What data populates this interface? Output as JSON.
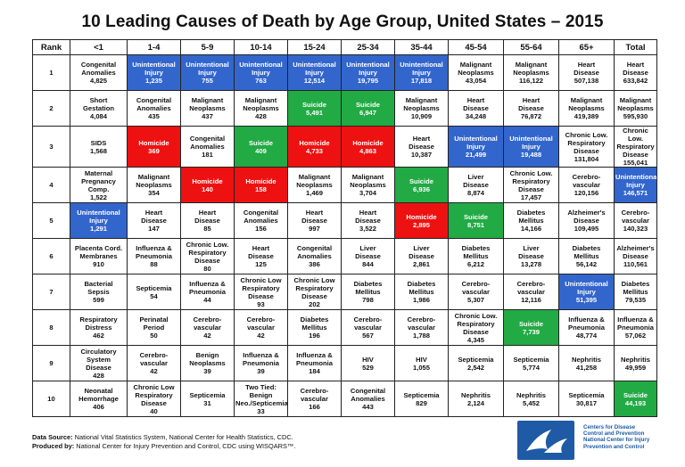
{
  "chart_data": {
    "type": "table",
    "title": "10 Leading Causes of Death by Age Group, United States – 2015",
    "columns": [
      "Rank",
      "<1",
      "1-4",
      "5-9",
      "10-14",
      "15-24",
      "25-34",
      "35-44",
      "45-54",
      "55-64",
      "65+",
      "Total"
    ],
    "rows": [
      {
        "rank": "1",
        "cells": [
          {
            "cause": "Congenital\nAnomalies",
            "count": "4,825",
            "color": ""
          },
          {
            "cause": "Unintentional\nInjury",
            "count": "1,235",
            "color": "#3366cc"
          },
          {
            "cause": "Unintentional\nInjury",
            "count": "755",
            "color": "#3366cc"
          },
          {
            "cause": "Unintentional\nInjury",
            "count": "763",
            "color": "#3366cc"
          },
          {
            "cause": "Unintentional\nInjury",
            "count": "12,514",
            "color": "#3366cc"
          },
          {
            "cause": "Unintentional\nInjury",
            "count": "19,795",
            "color": "#3366cc"
          },
          {
            "cause": "Unintentional\nInjury",
            "count": "17,818",
            "color": "#3366cc"
          },
          {
            "cause": "Malignant\nNeoplasms",
            "count": "43,054",
            "color": ""
          },
          {
            "cause": "Malignant\nNeoplasms",
            "count": "116,122",
            "color": ""
          },
          {
            "cause": "Heart\nDisease",
            "count": "507,138",
            "color": ""
          },
          {
            "cause": "Heart\nDisease",
            "count": "633,842",
            "color": ""
          }
        ]
      },
      {
        "rank": "2",
        "cells": [
          {
            "cause": "Short\nGestation",
            "count": "4,084",
            "color": ""
          },
          {
            "cause": "Congenital\nAnomalies",
            "count": "435",
            "color": ""
          },
          {
            "cause": "Malignant\nNeoplasms",
            "count": "437",
            "color": ""
          },
          {
            "cause": "Malignant\nNeoplasms",
            "count": "428",
            "color": ""
          },
          {
            "cause": "Suicide",
            "count": "5,491",
            "color": "#22aa44"
          },
          {
            "cause": "Suicide",
            "count": "6,947",
            "color": "#22aa44"
          },
          {
            "cause": "Malignant\nNeoplasms",
            "count": "10,909",
            "color": ""
          },
          {
            "cause": "Heart\nDisease",
            "count": "34,248",
            "color": ""
          },
          {
            "cause": "Heart\nDisease",
            "count": "76,872",
            "color": ""
          },
          {
            "cause": "Malignant\nNeoplasms",
            "count": "419,389",
            "color": ""
          },
          {
            "cause": "Malignant\nNeoplasms",
            "count": "595,930",
            "color": ""
          }
        ]
      },
      {
        "rank": "3",
        "cells": [
          {
            "cause": "SIDS",
            "count": "1,568",
            "color": ""
          },
          {
            "cause": "Homicide",
            "count": "369",
            "color": "#ee1111"
          },
          {
            "cause": "Congenital\nAnomalies",
            "count": "181",
            "color": ""
          },
          {
            "cause": "Suicide",
            "count": "409",
            "color": "#22aa44"
          },
          {
            "cause": "Homicide",
            "count": "4,733",
            "color": "#ee1111"
          },
          {
            "cause": "Homicide",
            "count": "4,863",
            "color": "#ee1111"
          },
          {
            "cause": "Heart\nDisease",
            "count": "10,387",
            "color": ""
          },
          {
            "cause": "Unintentional\nInjury",
            "count": "21,499",
            "color": "#3366cc"
          },
          {
            "cause": "Unintentional\nInjury",
            "count": "19,488",
            "color": "#3366cc"
          },
          {
            "cause": "Chronic Low.\nRespiratory\nDisease",
            "count": "131,804",
            "color": ""
          },
          {
            "cause": "Chronic Low.\nRespiratory\nDisease",
            "count": "155,041",
            "color": ""
          }
        ]
      },
      {
        "rank": "4",
        "cells": [
          {
            "cause": "Maternal\nPregnancy\nComp.",
            "count": "1,522",
            "color": ""
          },
          {
            "cause": "Malignant\nNeoplasms",
            "count": "354",
            "color": ""
          },
          {
            "cause": "Homicide",
            "count": "140",
            "color": "#ee1111"
          },
          {
            "cause": "Homicide",
            "count": "158",
            "color": "#ee1111"
          },
          {
            "cause": "Malignant\nNeoplasms",
            "count": "1,469",
            "color": ""
          },
          {
            "cause": "Malignant\nNeoplasms",
            "count": "3,704",
            "color": ""
          },
          {
            "cause": "Suicide",
            "count": "6,936",
            "color": "#22aa44"
          },
          {
            "cause": "Liver\nDisease",
            "count": "8,874",
            "color": ""
          },
          {
            "cause": "Chronic Low.\nRespiratory\nDisease",
            "count": "17,457",
            "color": ""
          },
          {
            "cause": "Cerebro-\nvascular",
            "count": "120,156",
            "color": ""
          },
          {
            "cause": "Unintentional\nInjury",
            "count": "146,571",
            "color": "#3366cc"
          }
        ]
      },
      {
        "rank": "5",
        "cells": [
          {
            "cause": "Unintentional\nInjury",
            "count": "1,291",
            "color": "#3366cc"
          },
          {
            "cause": "Heart\nDisease",
            "count": "147",
            "color": ""
          },
          {
            "cause": "Heart\nDisease",
            "count": "85",
            "color": ""
          },
          {
            "cause": "Congenital\nAnomalies",
            "count": "156",
            "color": ""
          },
          {
            "cause": "Heart\nDisease",
            "count": "997",
            "color": ""
          },
          {
            "cause": "Heart\nDisease",
            "count": "3,522",
            "color": ""
          },
          {
            "cause": "Homicide",
            "count": "2,895",
            "color": "#ee1111"
          },
          {
            "cause": "Suicide",
            "count": "8,751",
            "color": "#22aa44"
          },
          {
            "cause": "Diabetes\nMellitus",
            "count": "14,166",
            "color": ""
          },
          {
            "cause": "Alzheimer's\nDisease",
            "count": "109,495",
            "color": ""
          },
          {
            "cause": "Cerebro-\nvascular",
            "count": "140,323",
            "color": ""
          }
        ]
      },
      {
        "rank": "6",
        "cells": [
          {
            "cause": "Placenta Cord.\nMembranes",
            "count": "910",
            "color": ""
          },
          {
            "cause": "Influenza &\nPneumonia",
            "count": "88",
            "color": ""
          },
          {
            "cause": "Chronic Low.\nRespiratory\nDisease",
            "count": "80",
            "color": ""
          },
          {
            "cause": "Heart\nDisease",
            "count": "125",
            "color": ""
          },
          {
            "cause": "Congenital\nAnomalies",
            "count": "386",
            "color": ""
          },
          {
            "cause": "Liver\nDisease",
            "count": "844",
            "color": ""
          },
          {
            "cause": "Liver\nDisease",
            "count": "2,861",
            "color": ""
          },
          {
            "cause": "Diabetes\nMellitus",
            "count": "6,212",
            "color": ""
          },
          {
            "cause": "Liver\nDisease",
            "count": "13,278",
            "color": ""
          },
          {
            "cause": "Diabetes\nMellitus",
            "count": "56,142",
            "color": ""
          },
          {
            "cause": "Alzheimer's\nDisease",
            "count": "110,561",
            "color": ""
          }
        ]
      },
      {
        "rank": "7",
        "cells": [
          {
            "cause": "Bacterial\nSepsis",
            "count": "599",
            "color": ""
          },
          {
            "cause": "Septicemia",
            "count": "54",
            "color": ""
          },
          {
            "cause": "Influenza &\nPneumonia",
            "count": "44",
            "color": ""
          },
          {
            "cause": "Chronic Low\nRespiratory\nDisease",
            "count": "93",
            "color": ""
          },
          {
            "cause": "Chronic Low\nRespiratory\nDisease",
            "count": "202",
            "color": ""
          },
          {
            "cause": "Diabetes\nMellitus",
            "count": "798",
            "color": ""
          },
          {
            "cause": "Diabetes\nMellitus",
            "count": "1,986",
            "color": ""
          },
          {
            "cause": "Cerebro-\nvascular",
            "count": "5,307",
            "color": ""
          },
          {
            "cause": "Cerebro-\nvascular",
            "count": "12,116",
            "color": ""
          },
          {
            "cause": "Unintentional\nInjury",
            "count": "51,395",
            "color": "#3366cc"
          },
          {
            "cause": "Diabetes\nMellitus",
            "count": "79,535",
            "color": ""
          }
        ]
      },
      {
        "rank": "8",
        "cells": [
          {
            "cause": "Respiratory\nDistress",
            "count": "462",
            "color": ""
          },
          {
            "cause": "Perinatal\nPeriod",
            "count": "50",
            "color": ""
          },
          {
            "cause": "Cerebro-\nvascular",
            "count": "42",
            "color": ""
          },
          {
            "cause": "Cerebro-\nvascular",
            "count": "42",
            "color": ""
          },
          {
            "cause": "Diabetes\nMellitus",
            "count": "196",
            "color": ""
          },
          {
            "cause": "Cerebro-\nvascular",
            "count": "567",
            "color": ""
          },
          {
            "cause": "Cerebro-\nvascular",
            "count": "1,788",
            "color": ""
          },
          {
            "cause": "Chronic Low.\nRespiratory\nDisease",
            "count": "4,345",
            "color": ""
          },
          {
            "cause": "Suicide",
            "count": "7,739",
            "color": "#22aa44"
          },
          {
            "cause": "Influenza &\nPneumonia",
            "count": "48,774",
            "color": ""
          },
          {
            "cause": "Influenza &\nPneumonia",
            "count": "57,062",
            "color": ""
          }
        ]
      },
      {
        "rank": "9",
        "cells": [
          {
            "cause": "Circulatory\nSystem\nDisease",
            "count": "428",
            "color": ""
          },
          {
            "cause": "Cerebro-\nvascular",
            "count": "42",
            "color": ""
          },
          {
            "cause": "Benign\nNeoplasms",
            "count": "39",
            "color": ""
          },
          {
            "cause": "Influenza &\nPneumonia",
            "count": "39",
            "color": ""
          },
          {
            "cause": "Influenza &\nPneumonia",
            "count": "184",
            "color": ""
          },
          {
            "cause": "HIV",
            "count": "529",
            "color": ""
          },
          {
            "cause": "HIV",
            "count": "1,055",
            "color": ""
          },
          {
            "cause": "Septicemia",
            "count": "2,542",
            "color": ""
          },
          {
            "cause": "Septicemia",
            "count": "5,774",
            "color": ""
          },
          {
            "cause": "Nephritis",
            "count": "41,258",
            "color": ""
          },
          {
            "cause": "Nephritis",
            "count": "49,959",
            "color": ""
          }
        ]
      },
      {
        "rank": "10",
        "cells": [
          {
            "cause": "Neonatal\nHemorrhage",
            "count": "406",
            "color": ""
          },
          {
            "cause": "Chronic Low\nRespiratory\nDisease",
            "count": "40",
            "color": ""
          },
          {
            "cause": "Septicemia",
            "count": "31",
            "color": ""
          },
          {
            "cause": "Two Tied: Benign\nNeo./Septicemia",
            "count": "33",
            "color": ""
          },
          {
            "cause": "Cerebro-\nvascular",
            "count": "166",
            "color": ""
          },
          {
            "cause": "Congenital\nAnomalies",
            "count": "443",
            "color": ""
          },
          {
            "cause": "Septicemia",
            "count": "829",
            "color": ""
          },
          {
            "cause": "Nephritis",
            "count": "2,124",
            "color": ""
          },
          {
            "cause": "Nephritis",
            "count": "5,452",
            "color": ""
          },
          {
            "cause": "Septicemia",
            "count": "30,817",
            "color": ""
          },
          {
            "cause": "Suicide",
            "count": "44,193",
            "color": "#22aa44"
          }
        ]
      }
    ]
  },
  "footer": {
    "source_label": "Data Source:",
    "source_text": " National Vital Statistics System, National Center for Health Statistics, CDC.",
    "produced_label": "Produced by:",
    "produced_text": " National Center for Injury Prevention and Control, CDC using WISQARS™."
  },
  "logo": {
    "text": "Centers for Disease\nControl and Prevention\nNational Center for Injury\nPrevention and Control"
  }
}
